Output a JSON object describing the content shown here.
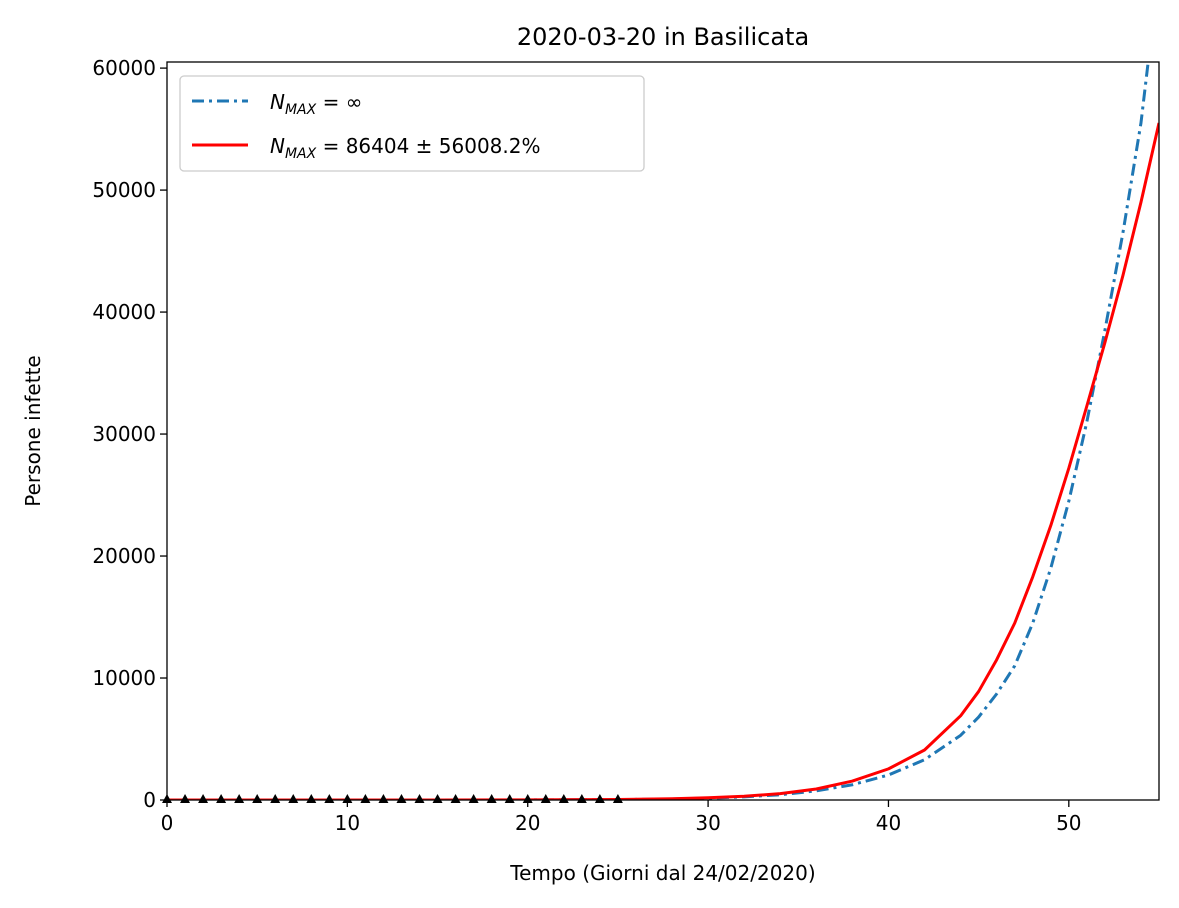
{
  "chart_data": {
    "type": "line",
    "title": "2020-03-20 in Basilicata",
    "xlabel": "Tempo (Giorni dal 24/02/2020)",
    "ylabel": "Persone infette",
    "xlim": [
      0,
      55
    ],
    "ylim": [
      0,
      60500
    ],
    "xticks": [
      0,
      10,
      20,
      30,
      40,
      50
    ],
    "yticks": [
      0,
      10000,
      20000,
      30000,
      40000,
      50000,
      60000
    ],
    "grid": false,
    "legend_position": "top-left",
    "series": [
      {
        "name": "N_MAX = ∞",
        "style": "dashdot",
        "color": "#1f77b4",
        "x": [
          0,
          5,
          10,
          15,
          20,
          25,
          28,
          30,
          32,
          34,
          36,
          38,
          40,
          42,
          44,
          45,
          46,
          47,
          48,
          49,
          50,
          51,
          52,
          53,
          54,
          54.4
        ],
        "y": [
          0,
          0,
          0,
          0,
          5,
          30,
          80,
          150,
          260,
          430,
          750,
          1250,
          2050,
          3300,
          5300,
          6800,
          8700,
          11000,
          14500,
          19000,
          24500,
          31000,
          38500,
          46500,
          55500,
          60500
        ]
      },
      {
        "name": "N_MAX = 86404 ± 56008.2%",
        "style": "solid",
        "color": "#ff0000",
        "x": [
          0,
          5,
          10,
          15,
          20,
          25,
          28,
          30,
          32,
          34,
          36,
          38,
          40,
          42,
          44,
          45,
          46,
          47,
          48,
          49,
          50,
          51,
          52,
          53,
          54,
          55
        ],
        "y": [
          0,
          0,
          0,
          0,
          8,
          40,
          100,
          180,
          310,
          520,
          900,
          1550,
          2550,
          4100,
          6900,
          8900,
          11500,
          14500,
          18300,
          22500,
          27200,
          32300,
          37500,
          43000,
          49000,
          55500
        ]
      },
      {
        "name": "",
        "style": "markers",
        "marker": "triangle",
        "color": "#000000",
        "x": [
          0,
          1,
          2,
          3,
          4,
          5,
          6,
          7,
          8,
          9,
          10,
          11,
          12,
          13,
          14,
          15,
          16,
          17,
          18,
          19,
          20,
          21,
          22,
          23,
          24,
          25
        ],
        "y": [
          0,
          0,
          0,
          0,
          0,
          0,
          0,
          0,
          0,
          0,
          0,
          0,
          0,
          0,
          0,
          0,
          0,
          0,
          0,
          0,
          0,
          0,
          0,
          0,
          0,
          0
        ]
      }
    ],
    "legend": [
      {
        "base": "N",
        "sub": "MAX",
        "rest": " = ∞"
      },
      {
        "base": "N",
        "sub": "MAX",
        "rest": " = 86404 ± 56008.2%"
      }
    ]
  }
}
